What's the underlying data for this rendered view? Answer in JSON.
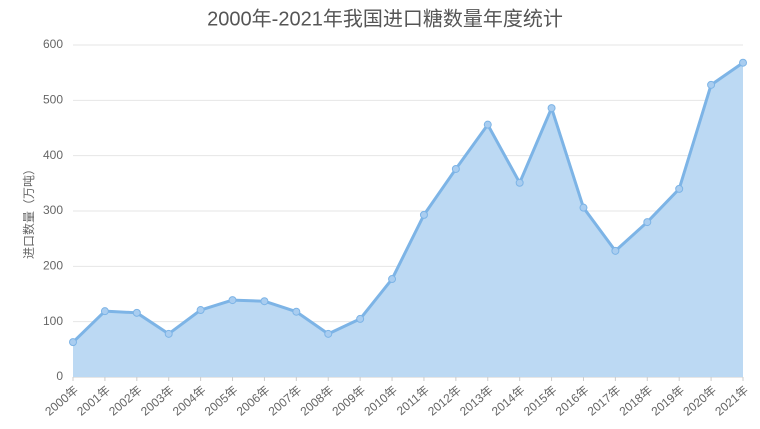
{
  "chart_data": {
    "type": "area",
    "title": "2000年-2021年我国进口糖数量年度统计",
    "y_label": "进口数量（万吨）",
    "categories": [
      "2000年",
      "2001年",
      "2002年",
      "2003年",
      "2004年",
      "2005年",
      "2006年",
      "2007年",
      "2008年",
      "2009年",
      "2010年",
      "2011年",
      "2012年",
      "2013年",
      "2014年",
      "2015年",
      "2016年",
      "2017年",
      "2018年",
      "2019年",
      "2020年",
      "2021年"
    ],
    "values": [
      63,
      119,
      116,
      78,
      121,
      139,
      137,
      118,
      78,
      105,
      177,
      293,
      376,
      456,
      351,
      486,
      306,
      228,
      280,
      340,
      528,
      568
    ],
    "color": "#7db4e6",
    "fill": "#bcd9f3",
    "ylim": [
      0,
      600
    ],
    "yticks": [
      0,
      100,
      200,
      300,
      400,
      500,
      600
    ],
    "grid": true
  }
}
